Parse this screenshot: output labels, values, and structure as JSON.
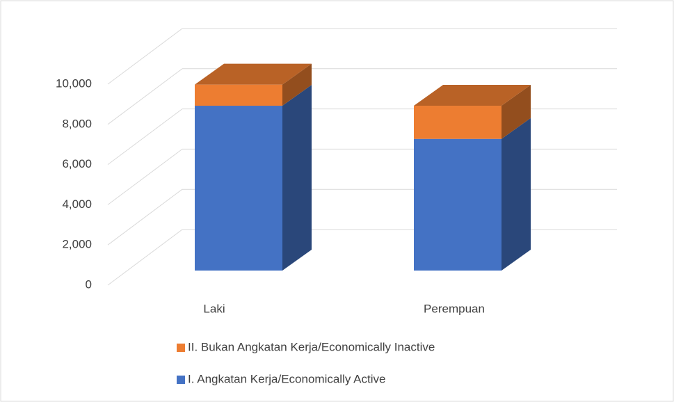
{
  "chart_data": {
    "type": "bar",
    "stacked": true,
    "threeD": true,
    "categories": [
      "Laki",
      "Perempuan"
    ],
    "series": [
      {
        "name": "I. Angkatan Kerja/Economically Active",
        "color": "#4472c4",
        "values": [
          8200,
          6550
        ]
      },
      {
        "name": "II. Bukan Angkatan Kerja/Economically Inactive",
        "color": "#ed7d31",
        "values": [
          1050,
          1650
        ]
      }
    ],
    "ylim": [
      0,
      10000
    ],
    "yticks": [
      0,
      {
        "value": 2000,
        "label": "2,000"
      },
      {
        "value": 4000,
        "label": "4,000"
      },
      {
        "value": 6000,
        "label": "6,000"
      },
      {
        "value": 8000,
        "label": "8,000"
      },
      {
        "value": 10000,
        "label": "10,000"
      }
    ],
    "grid": true,
    "legend": "bottom"
  }
}
